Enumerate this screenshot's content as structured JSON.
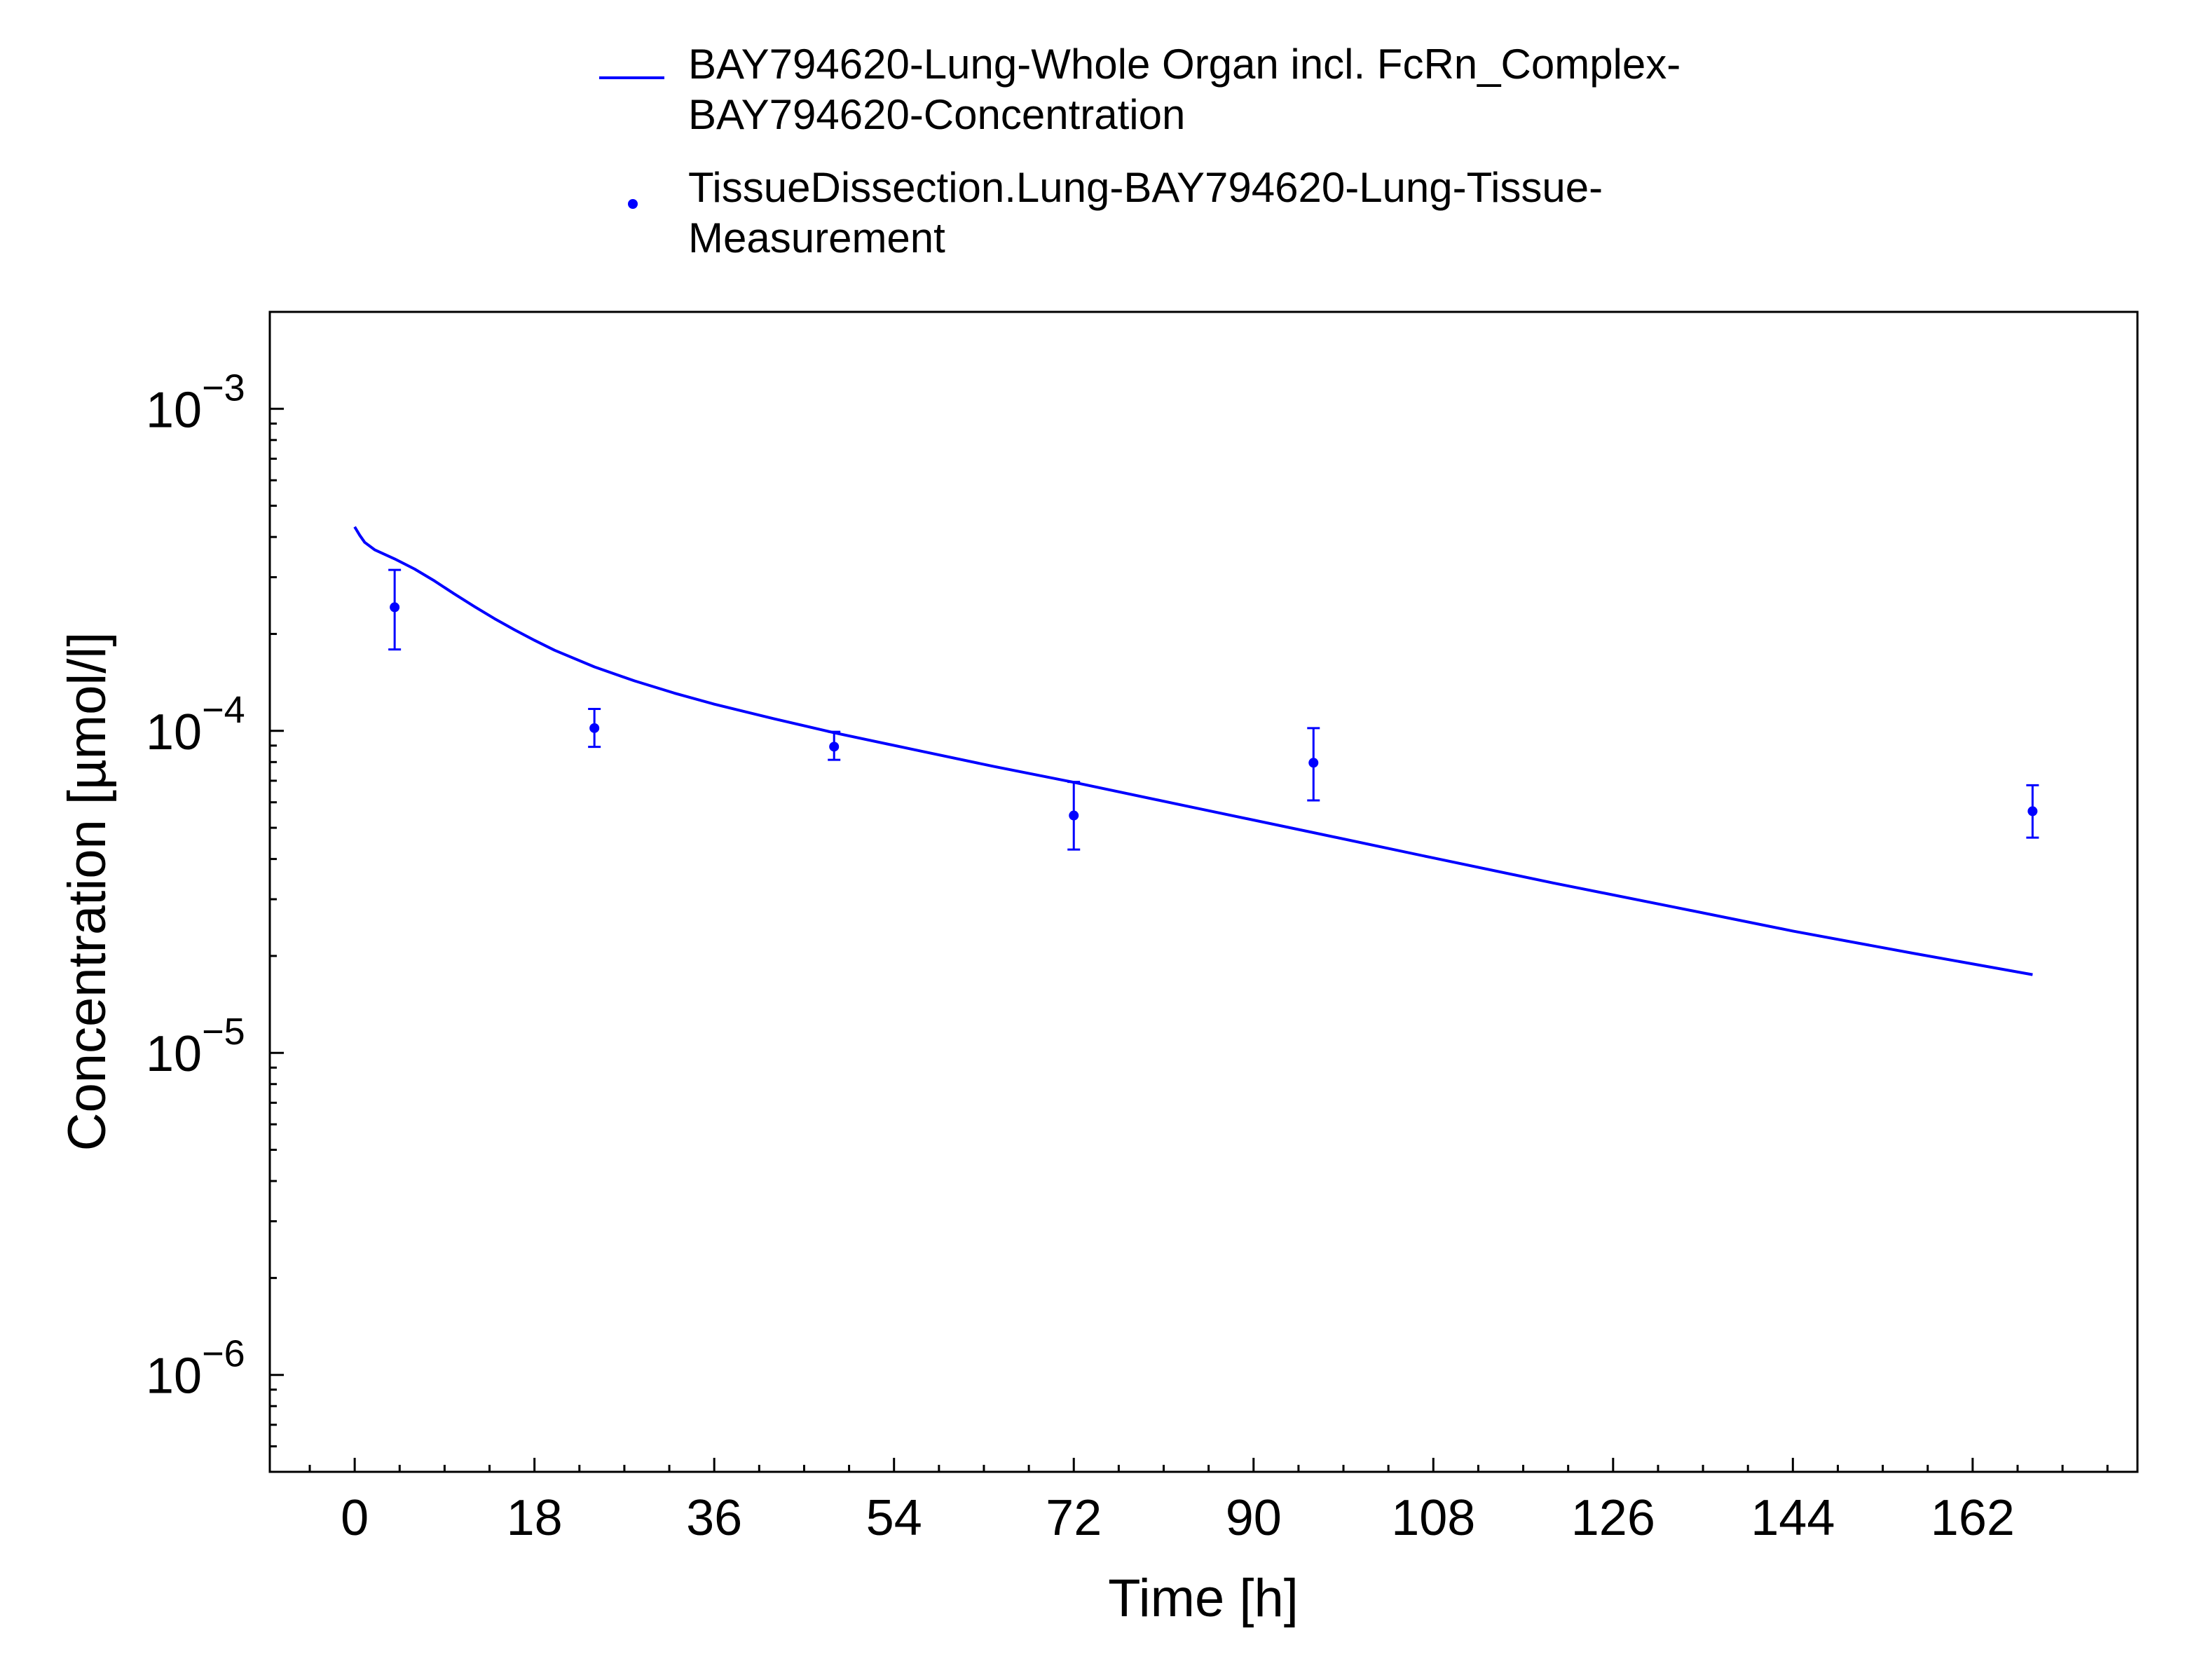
{
  "chart_data": {
    "type": "line",
    "xlabel": "Time [h]",
    "ylabel": "Concentration [µmol/l]",
    "xlim": [
      -8.5,
      178.5
    ],
    "xticks": [
      0,
      18,
      36,
      54,
      72,
      90,
      108,
      126,
      144,
      162
    ],
    "ylim": [
      5e-07,
      0.002
    ],
    "yscale": "log",
    "yticks": [
      {
        "value": 0.001,
        "base": "10",
        "exp": "−3"
      },
      {
        "value": 0.0001,
        "base": "10",
        "exp": "−4"
      },
      {
        "value": 1e-05,
        "base": "10",
        "exp": "−5"
      },
      {
        "value": 1e-06,
        "base": "10",
        "exp": "−6"
      }
    ],
    "grid": false,
    "legend_position": "top",
    "series": [
      {
        "name": "BAY794620-Lung-Whole Organ incl. FcRn_Complex-BAY794620-Concentration",
        "legend_lines": [
          "BAY794620-Lung-Whole Organ incl. FcRn_Complex-",
          "BAY794620-Concentration"
        ],
        "kind": "line",
        "color": "#0000ff",
        "x": [
          0,
          0.5,
          1,
          2,
          4,
          6,
          8,
          10,
          12,
          14,
          16,
          18,
          20,
          24,
          28,
          32,
          36,
          42,
          48,
          56,
          64,
          72,
          84,
          96,
          108,
          120,
          132,
          144,
          156,
          168
        ],
        "y": [
          0.00043,
          0.000405,
          0.000385,
          0.000365,
          0.000342,
          0.000318,
          0.000292,
          0.000266,
          0.000243,
          0.000223,
          0.000206,
          0.000191,
          0.000178,
          0.000158,
          0.000143,
          0.000131,
          0.000121,
          0.000109,
          9.87e-05,
          8.74e-05,
          7.75e-05,
          6.92e-05,
          5.78e-05,
          4.83e-05,
          4.03e-05,
          3.37e-05,
          2.84e-05,
          2.39e-05,
          2.04e-05,
          1.75e-05
        ]
      },
      {
        "name": "TissueDissection.Lung-BAY794620-Lung-Tissue-Measurement",
        "legend_lines": [
          "TissueDissection.Lung-BAY794620-Lung-Tissue-",
          "Measurement"
        ],
        "kind": "scatter",
        "color": "#0000ff",
        "x": [
          4,
          24,
          48,
          72,
          96,
          168
        ],
        "y": [
          0.000242,
          0.000102,
          8.93e-05,
          5.46e-05,
          7.96e-05,
          5.63e-05
        ],
        "err_low": [
          0.000179,
          8.92e-05,
          8.13e-05,
          4.28e-05,
          6.08e-05,
          4.66e-05
        ],
        "err_high": [
          0.000316,
          0.000117,
          9.93e-05,
          6.94e-05,
          0.000102,
          6.78e-05
        ]
      }
    ]
  }
}
